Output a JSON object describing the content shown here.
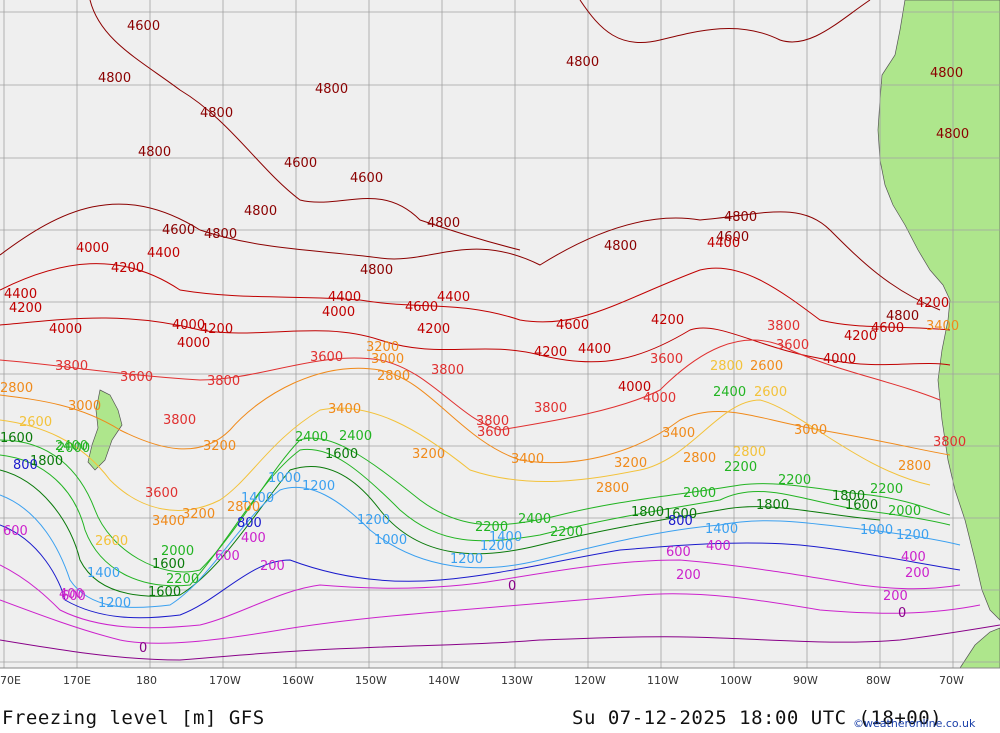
{
  "title": "Freezing level [m] GFS",
  "datetime": "Su 07-12-2025 18:00 UTC (18+00)",
  "credit": "©weatheronline.co.uk",
  "longitude_ticks": [
    "70E",
    "170E",
    "180",
    "170W",
    "160W",
    "150W",
    "140W",
    "130W",
    "120W",
    "110W",
    "100W",
    "90W",
    "80W",
    "70W"
  ],
  "colors": {
    "ocean": "#efefef",
    "land": "#aee68c",
    "grid": "#a0a0a0",
    "c4800": "#8b0000",
    "c4000": "#c00000",
    "c3600": "#e03030",
    "c3000": "#f08a1a",
    "c2400": "#f3c23a",
    "c2000": "#22b422",
    "c1600": "#0a7a0a",
    "c1200": "#3aa0f0",
    "c800": "#1a1acc",
    "c400": "#cc22cc",
    "c0": "#880088"
  },
  "contour_labels": [
    {
      "text": "4600",
      "c": "c4800"
    },
    {
      "text": "4800",
      "c": "c4800"
    },
    {
      "text": "4800",
      "c": "c4800"
    },
    {
      "text": "4800",
      "c": "c4800"
    },
    {
      "text": "4800",
      "c": "c4800"
    },
    {
      "text": "4800",
      "c": "c4800"
    },
    {
      "text": "4600",
      "c": "c4800"
    },
    {
      "text": "4600",
      "c": "c4800"
    },
    {
      "text": "4800",
      "c": "c4800"
    },
    {
      "text": "4600",
      "c": "c4800"
    },
    {
      "text": "4800",
      "c": "c4800"
    },
    {
      "text": "4800",
      "c": "c4800"
    },
    {
      "text": "4800",
      "c": "c4800"
    },
    {
      "text": "4800",
      "c": "c4800"
    },
    {
      "text": "4800",
      "c": "c4800"
    },
    {
      "text": "4600",
      "c": "c4800"
    },
    {
      "text": "4800",
      "c": "c4800"
    },
    {
      "text": "4800",
      "c": "c4800"
    },
    {
      "text": "4800",
      "c": "c4800"
    },
    {
      "text": "4400",
      "c": "c4000"
    },
    {
      "text": "4000",
      "c": "c4000"
    },
    {
      "text": "4200",
      "c": "c4000"
    },
    {
      "text": "4400",
      "c": "c4000"
    },
    {
      "text": "4200",
      "c": "c4000"
    },
    {
      "text": "4000",
      "c": "c4000"
    },
    {
      "text": "4000",
      "c": "c4000"
    },
    {
      "text": "4200",
      "c": "c4000"
    },
    {
      "text": "4000",
      "c": "c4000"
    },
    {
      "text": "4400",
      "c": "c4000"
    },
    {
      "text": "4000",
      "c": "c4000"
    },
    {
      "text": "4600",
      "c": "c4000"
    },
    {
      "text": "4400",
      "c": "c4000"
    },
    {
      "text": "4200",
      "c": "c4000"
    },
    {
      "text": "4600",
      "c": "c4000"
    },
    {
      "text": "4200",
      "c": "c4000"
    },
    {
      "text": "4400",
      "c": "c4000"
    },
    {
      "text": "4200",
      "c": "c4000"
    },
    {
      "text": "4000",
      "c": "c4000"
    },
    {
      "text": "4200",
      "c": "c4000"
    },
    {
      "text": "4600",
      "c": "c4000"
    },
    {
      "text": "4400",
      "c": "c4000"
    },
    {
      "text": "4200",
      "c": "c4000"
    },
    {
      "text": "4000",
      "c": "c4000"
    },
    {
      "text": "3800",
      "c": "c3600"
    },
    {
      "text": "3600",
      "c": "c3600"
    },
    {
      "text": "3800",
      "c": "c3600"
    },
    {
      "text": "3800",
      "c": "c3600"
    },
    {
      "text": "3600",
      "c": "c3600"
    },
    {
      "text": "3800",
      "c": "c3600"
    },
    {
      "text": "3600",
      "c": "c3600"
    },
    {
      "text": "3800",
      "c": "c3600"
    },
    {
      "text": "3600",
      "c": "c3600"
    },
    {
      "text": "3800",
      "c": "c3600"
    },
    {
      "text": "3600",
      "c": "c3600"
    },
    {
      "text": "3600",
      "c": "c3600"
    },
    {
      "text": "4000",
      "c": "c3600"
    },
    {
      "text": "3800",
      "c": "c3600"
    },
    {
      "text": "3800",
      "c": "c3600"
    },
    {
      "text": "3400",
      "c": "c3000"
    },
    {
      "text": "3200",
      "c": "c3000"
    },
    {
      "text": "3000",
      "c": "c3000"
    },
    {
      "text": "2800",
      "c": "c3000"
    },
    {
      "text": "3400",
      "c": "c3000"
    },
    {
      "text": "3200",
      "c": "c3000"
    },
    {
      "text": "3400",
      "c": "c3000"
    },
    {
      "text": "3200",
      "c": "c3000"
    },
    {
      "text": "3400",
      "c": "c3000"
    },
    {
      "text": "3000",
      "c": "c3000"
    },
    {
      "text": "2800",
      "c": "c3000"
    },
    {
      "text": "3200",
      "c": "c3000"
    },
    {
      "text": "3400",
      "c": "c3000"
    },
    {
      "text": "3000",
      "c": "c3000"
    },
    {
      "text": "2800",
      "c": "c3000"
    },
    {
      "text": "2600",
      "c": "c3000"
    },
    {
      "text": "2800",
      "c": "c3000"
    },
    {
      "text": "2800",
      "c": "c3000"
    },
    {
      "text": "3200",
      "c": "c3000"
    },
    {
      "text": "2800",
      "c": "c3000"
    },
    {
      "text": "2600",
      "c": "c2400"
    },
    {
      "text": "2800",
      "c": "c2400"
    },
    {
      "text": "2600",
      "c": "c2400"
    },
    {
      "text": "2600",
      "c": "c2400"
    },
    {
      "text": "2800",
      "c": "c2400"
    },
    {
      "text": "2200",
      "c": "c2000"
    },
    {
      "text": "2400",
      "c": "c2000"
    },
    {
      "text": "2400",
      "c": "c2000"
    },
    {
      "text": "2400",
      "c": "c2000"
    },
    {
      "text": "2000",
      "c": "c2000"
    },
    {
      "text": "2200",
      "c": "c2000"
    },
    {
      "text": "2400",
      "c": "c2000"
    },
    {
      "text": "2200",
      "c": "c2000"
    },
    {
      "text": "2000",
      "c": "c2000"
    },
    {
      "text": "2200",
      "c": "c2000"
    },
    {
      "text": "2200",
      "c": "c2000"
    },
    {
      "text": "2000",
      "c": "c2000"
    },
    {
      "text": "2400",
      "c": "c2000"
    },
    {
      "text": "2200",
      "c": "c2000"
    },
    {
      "text": "2000",
      "c": "c2000"
    },
    {
      "text": "1600",
      "c": "c1600"
    },
    {
      "text": "1800",
      "c": "c1600"
    },
    {
      "text": "1600",
      "c": "c1600"
    },
    {
      "text": "1800",
      "c": "c1600"
    },
    {
      "text": "1600",
      "c": "c1600"
    },
    {
      "text": "1800",
      "c": "c1600"
    },
    {
      "text": "1600",
      "c": "c1600"
    },
    {
      "text": "1800",
      "c": "c1600"
    },
    {
      "text": "1600",
      "c": "c1600"
    },
    {
      "text": "1600",
      "c": "c1600"
    },
    {
      "text": "1200",
      "c": "c1200"
    },
    {
      "text": "1400",
      "c": "c1200"
    },
    {
      "text": "1000",
      "c": "c1200"
    },
    {
      "text": "1200",
      "c": "c1200"
    },
    {
      "text": "1400",
      "c": "c1200"
    },
    {
      "text": "1200",
      "c": "c1200"
    },
    {
      "text": "1000",
      "c": "c1200"
    },
    {
      "text": "1200",
      "c": "c1200"
    },
    {
      "text": "1400",
      "c": "c1200"
    },
    {
      "text": "1200",
      "c": "c1200"
    },
    {
      "text": "1400",
      "c": "c1200"
    },
    {
      "text": "1000",
      "c": "c1200"
    },
    {
      "text": "1200",
      "c": "c1200"
    },
    {
      "text": "800",
      "c": "c800"
    },
    {
      "text": "800",
      "c": "c800"
    },
    {
      "text": "800",
      "c": "c800"
    },
    {
      "text": "600",
      "c": "c400"
    },
    {
      "text": "400",
      "c": "c400"
    },
    {
      "text": "400",
      "c": "c400"
    },
    {
      "text": "600",
      "c": "c400"
    },
    {
      "text": "400",
      "c": "c400"
    },
    {
      "text": "600",
      "c": "c400"
    },
    {
      "text": "600",
      "c": "c400"
    },
    {
      "text": "400",
      "c": "c400"
    },
    {
      "text": "200",
      "c": "c400"
    },
    {
      "text": "200",
      "c": "c400"
    },
    {
      "text": "200",
      "c": "c400"
    },
    {
      "text": "200",
      "c": "c400"
    },
    {
      "text": "0",
      "c": "c0"
    },
    {
      "text": "0",
      "c": "c0"
    },
    {
      "text": "0",
      "c": "c0"
    }
  ]
}
